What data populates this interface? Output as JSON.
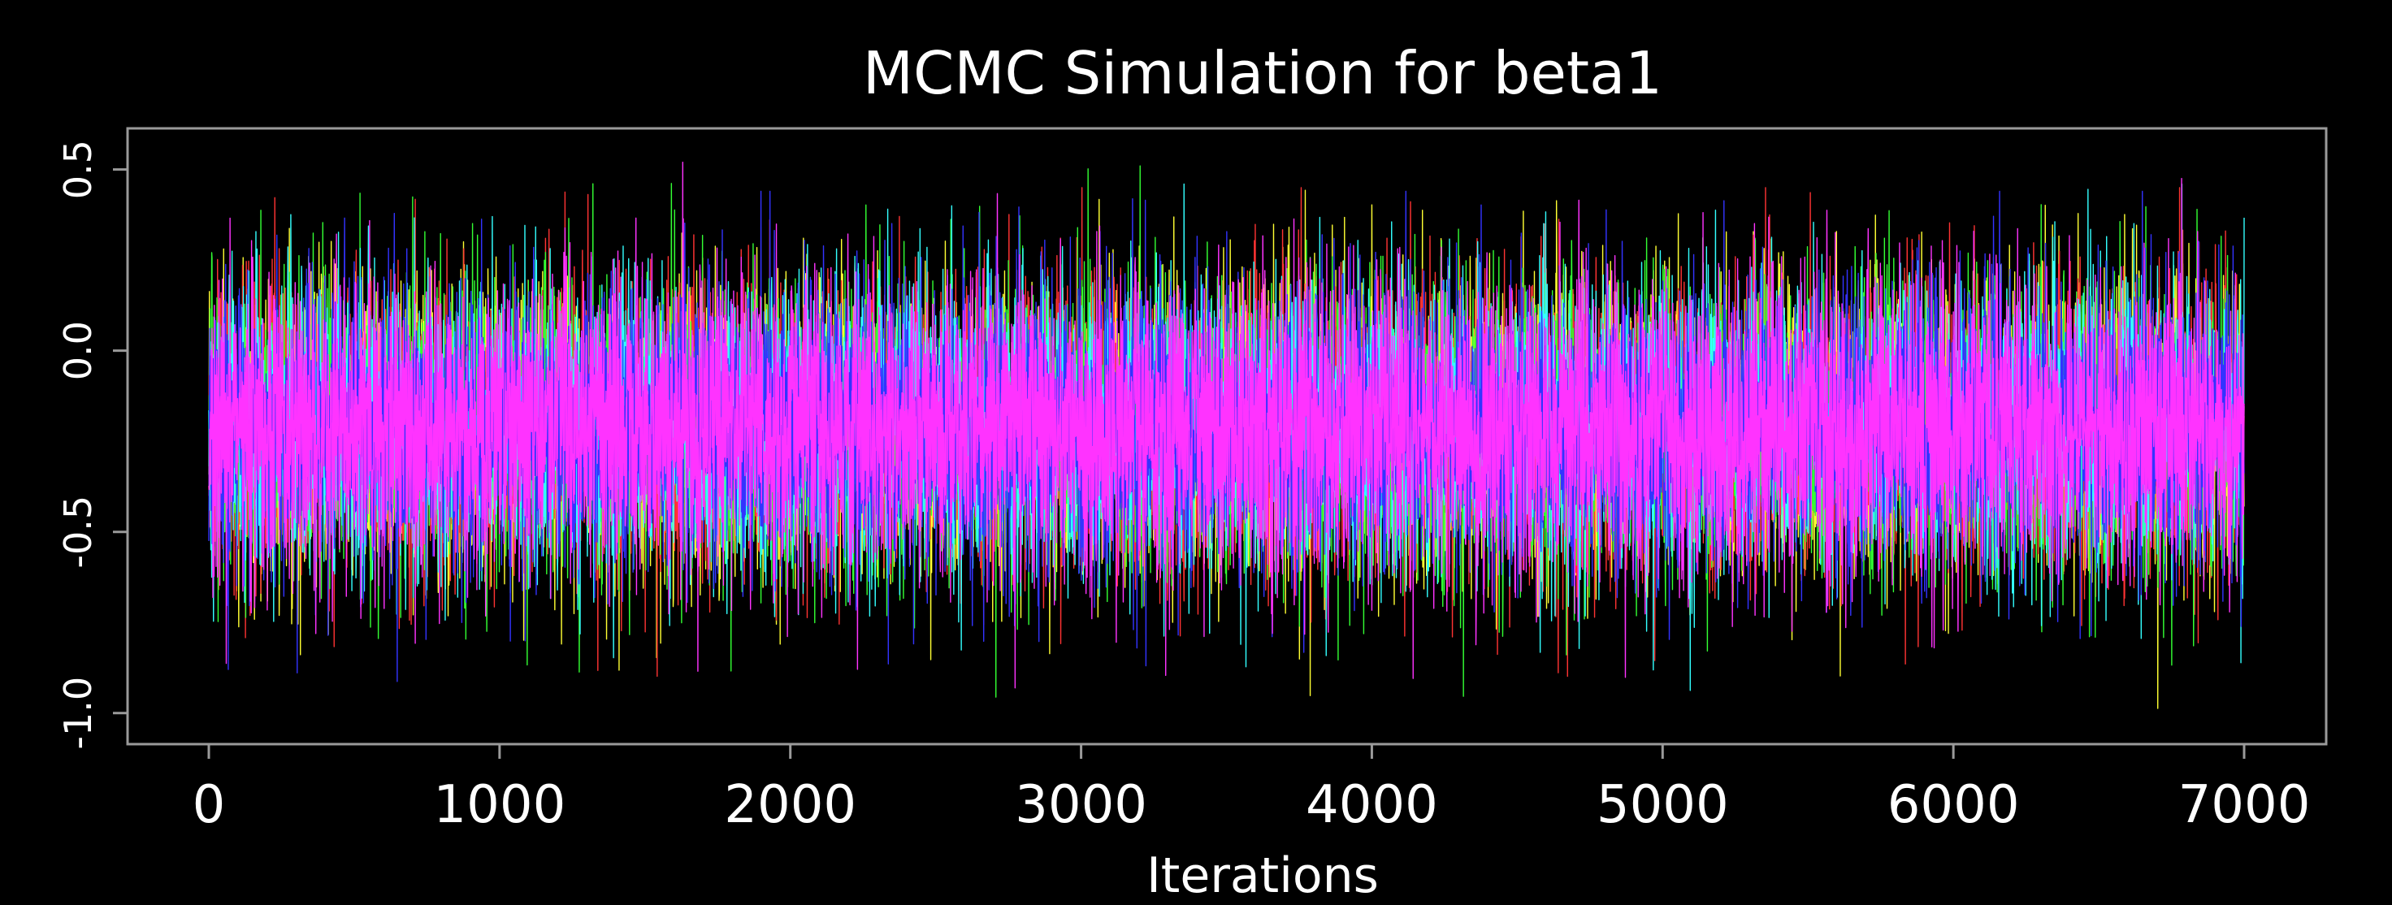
{
  "chart_data": {
    "type": "line",
    "title": "MCMC Simulation for beta1",
    "xlabel": "Iterations",
    "ylabel": "",
    "xlim": [
      0,
      7000
    ],
    "ylim": [
      -1.05,
      0.58
    ],
    "xticks": [
      0,
      1000,
      2000,
      3000,
      4000,
      5000,
      6000,
      7000
    ],
    "xtick_labels": [
      "0",
      "1000",
      "2000",
      "3000",
      "4000",
      "5000",
      "6000",
      "7000"
    ],
    "yticks": [
      -1.0,
      -0.5,
      0.0,
      0.5
    ],
    "ytick_labels": [
      "-1.0",
      "-0.5",
      "0.0",
      "0.5"
    ],
    "grid": false,
    "legend": "none",
    "background": "#000000",
    "frame_color": "#9a9a9a",
    "n_iterations": 7000,
    "series": [
      {
        "color": "#ffff33",
        "mean": -0.21,
        "sd": 0.2,
        "min": -1.02,
        "max": 0.55
      },
      {
        "color": "#ff3333",
        "mean": -0.21,
        "sd": 0.2,
        "min": -0.9,
        "max": 0.45
      },
      {
        "color": "#33ff33",
        "mean": -0.21,
        "sd": 0.2,
        "min": -0.97,
        "max": 0.51
      },
      {
        "color": "#33ffff",
        "mean": -0.21,
        "sd": 0.2,
        "min": -0.95,
        "max": 0.46
      },
      {
        "color": "#3333ff",
        "mean": -0.21,
        "sd": 0.2,
        "min": -0.93,
        "max": 0.44
      },
      {
        "color": "#ff33ff",
        "mean": -0.21,
        "sd": 0.2,
        "min": -0.98,
        "max": 0.52
      }
    ]
  }
}
